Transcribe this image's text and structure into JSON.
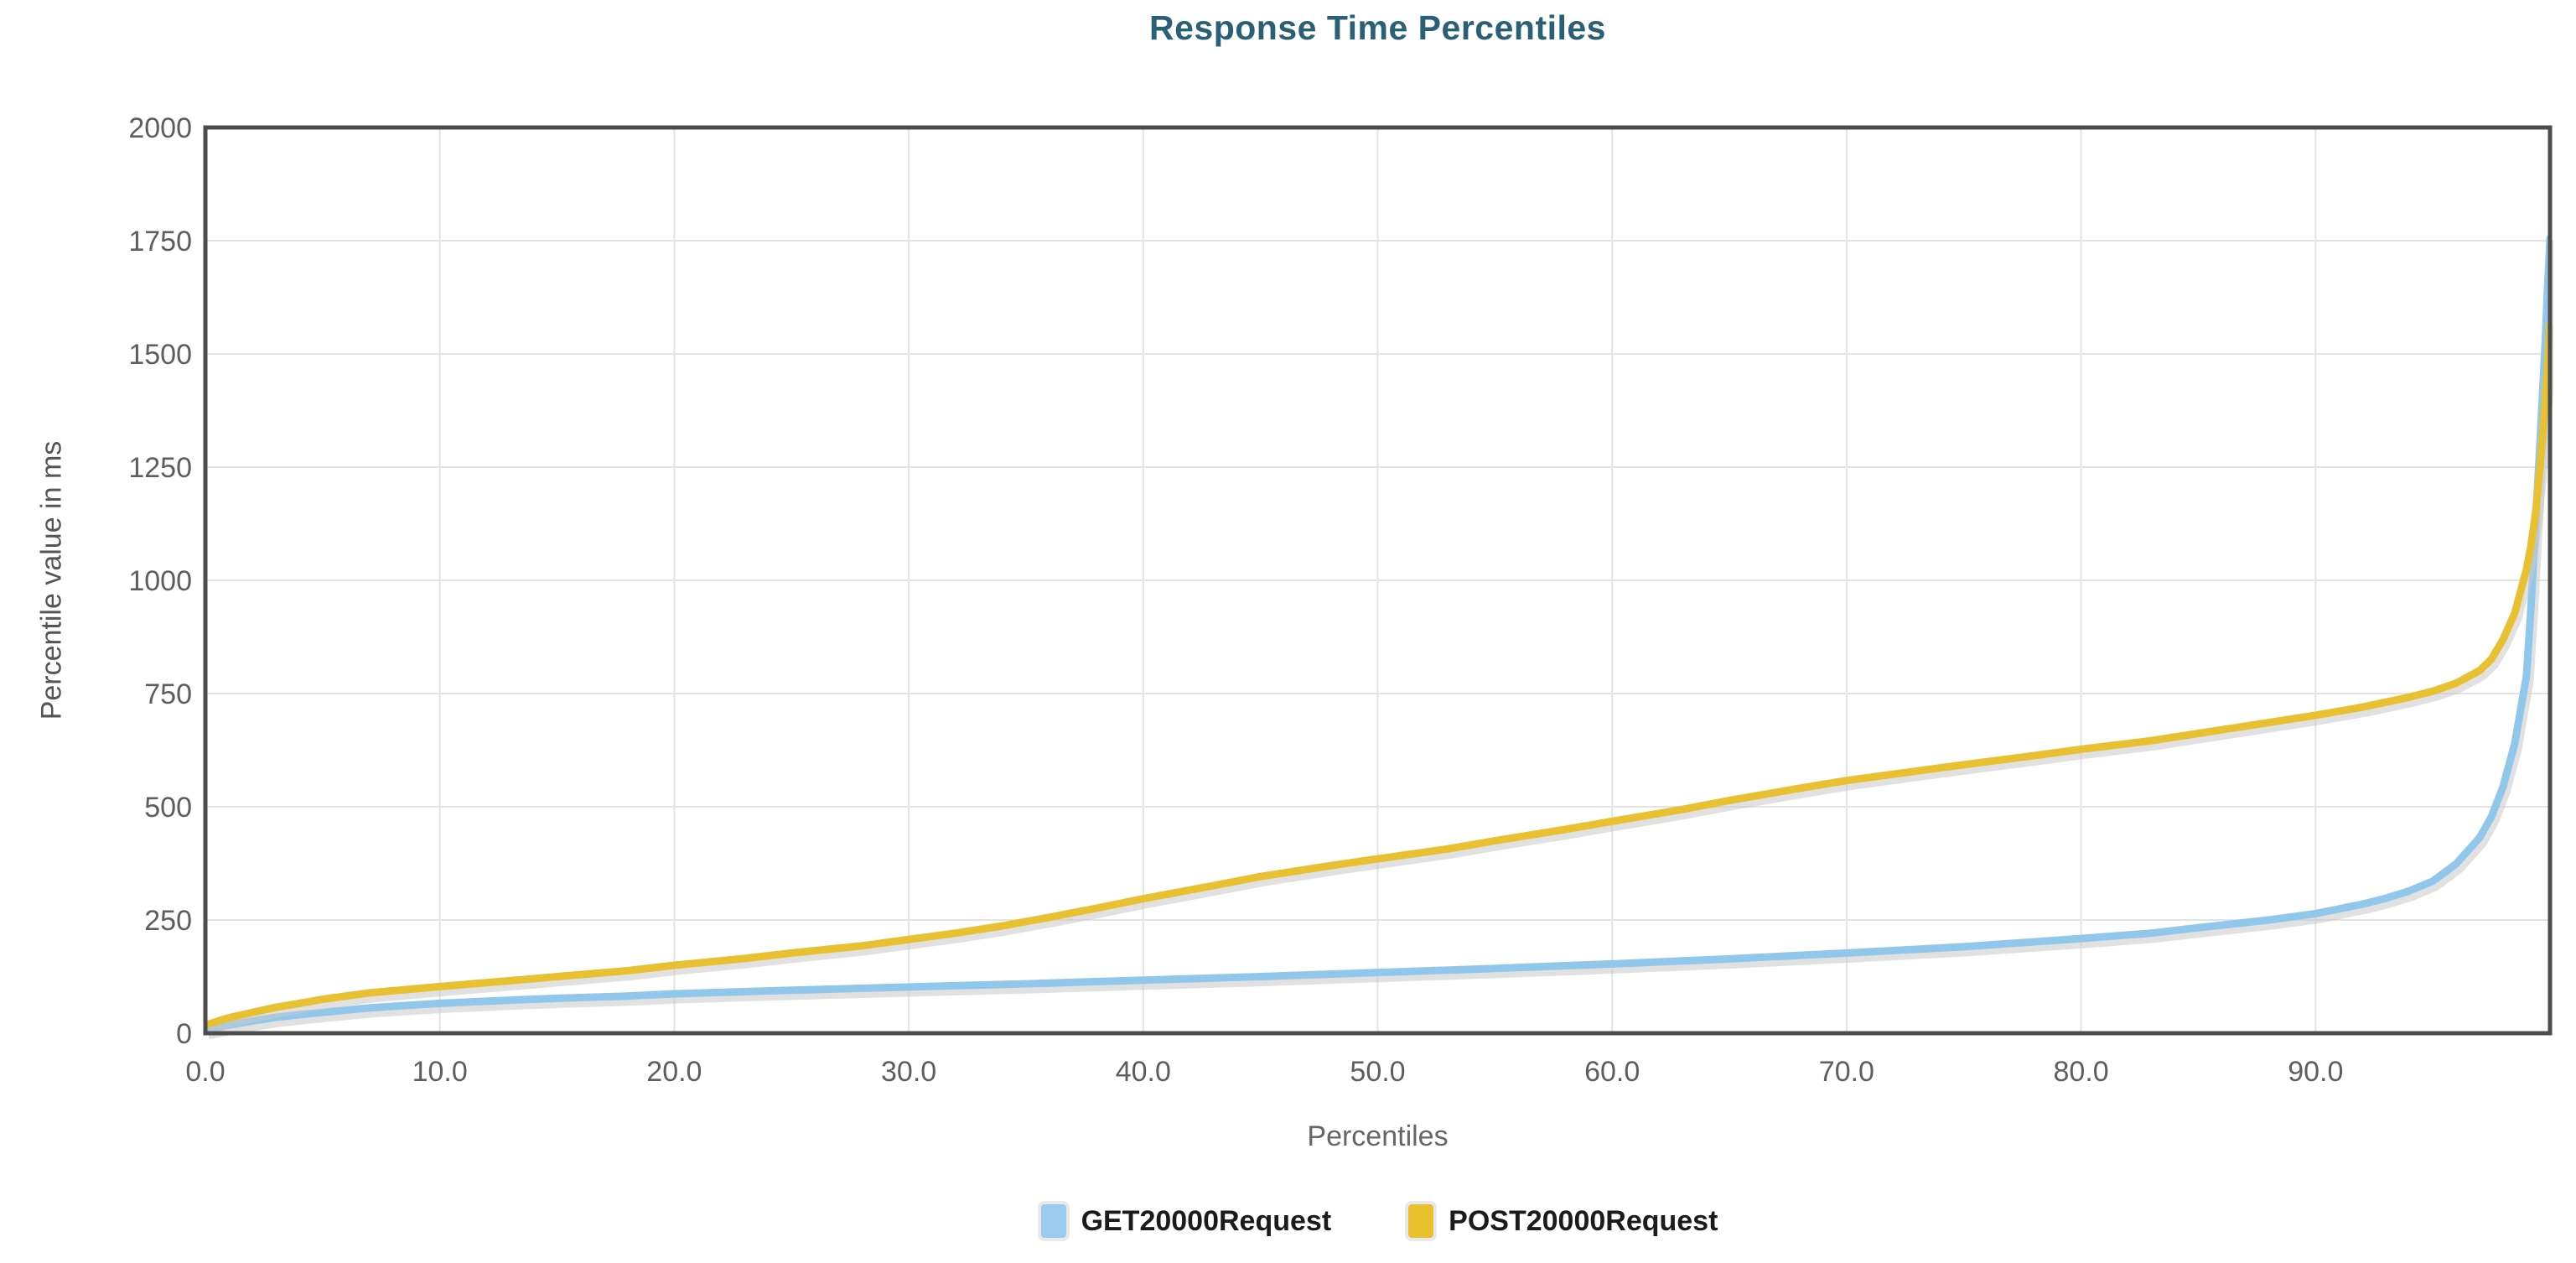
{
  "chart": {
    "title": "Response Time Percentiles",
    "x_axis_label": "Percentiles",
    "y_axis_label": "Percentile value in ms"
  },
  "colors": {
    "title_text": "#2a6076",
    "tick_text": "#5e5e5e",
    "axis_title_text": "#666666",
    "grid_line": "#e3e3e3",
    "plot_border": "#4c4c4c",
    "line_shadow": "#c9c9c9",
    "get_series": "#92c7ec",
    "post_series": "#e8c133",
    "legend_swatch_get": "#9ccbf0",
    "legend_swatch_post": "#e9c12f"
  },
  "chart_data": {
    "type": "line",
    "title": "Response Time Percentiles",
    "xlabel": "Percentiles",
    "ylabel": "Percentile value in ms",
    "xlim": [
      0,
      100
    ],
    "ylim": [
      0,
      2000
    ],
    "grid": true,
    "legend_position": "bottom",
    "x_ticks": [
      0,
      10,
      20,
      30,
      40,
      50,
      60,
      70,
      80,
      90
    ],
    "x_tick_labels": [
      "0.0",
      "10.0",
      "20.0",
      "30.0",
      "40.0",
      "50.0",
      "60.0",
      "70.0",
      "80.0",
      "90.0"
    ],
    "y_ticks": [
      0,
      250,
      500,
      750,
      1000,
      1250,
      1500,
      1750,
      2000
    ],
    "y_tick_labels": [
      "0",
      "250",
      "500",
      "750",
      "1000",
      "1250",
      "1500",
      "1750",
      "2000"
    ],
    "series": [
      {
        "name": "GET20000Request",
        "color": "#92c7ec",
        "swatch_color": "#9ccbf0",
        "points": [
          [
            0,
            8
          ],
          [
            1,
            18
          ],
          [
            2,
            27
          ],
          [
            3,
            35
          ],
          [
            4,
            41
          ],
          [
            5,
            46
          ],
          [
            7,
            56
          ],
          [
            10,
            66
          ],
          [
            13,
            73
          ],
          [
            15,
            77
          ],
          [
            18,
            82
          ],
          [
            20,
            87
          ],
          [
            25,
            95
          ],
          [
            30,
            102
          ],
          [
            35,
            109
          ],
          [
            40,
            117
          ],
          [
            45,
            125
          ],
          [
            50,
            134
          ],
          [
            55,
            143
          ],
          [
            60,
            153
          ],
          [
            65,
            164
          ],
          [
            70,
            177
          ],
          [
            75,
            191
          ],
          [
            80,
            209
          ],
          [
            83,
            221
          ],
          [
            85,
            233
          ],
          [
            88,
            250
          ],
          [
            90,
            264
          ],
          [
            92,
            285
          ],
          [
            93,
            298
          ],
          [
            94,
            314
          ],
          [
            95,
            336
          ],
          [
            96,
            374
          ],
          [
            97,
            432
          ],
          [
            97.5,
            478
          ],
          [
            98,
            545
          ],
          [
            98.5,
            640
          ],
          [
            99,
            790
          ],
          [
            99.2,
            950
          ],
          [
            99.4,
            1140
          ],
          [
            99.6,
            1330
          ],
          [
            99.8,
            1530
          ],
          [
            99.9,
            1650
          ],
          [
            100,
            1755
          ]
        ]
      },
      {
        "name": "POST20000Request",
        "color": "#e8c133",
        "swatch_color": "#e9c12f",
        "points": [
          [
            0,
            18
          ],
          [
            1,
            34
          ],
          [
            2,
            46
          ],
          [
            3,
            57
          ],
          [
            4,
            66
          ],
          [
            5,
            75
          ],
          [
            7,
            89
          ],
          [
            10,
            103
          ],
          [
            13,
            116
          ],
          [
            15,
            125
          ],
          [
            18,
            138
          ],
          [
            20,
            150
          ],
          [
            23,
            165
          ],
          [
            25,
            177
          ],
          [
            28,
            193
          ],
          [
            30,
            207
          ],
          [
            32,
            221
          ],
          [
            34,
            237
          ],
          [
            36,
            256
          ],
          [
            38,
            276
          ],
          [
            40,
            297
          ],
          [
            43,
            326
          ],
          [
            45,
            346
          ],
          [
            48,
            370
          ],
          [
            50,
            385
          ],
          [
            53,
            407
          ],
          [
            55,
            425
          ],
          [
            58,
            450
          ],
          [
            60,
            468
          ],
          [
            63,
            494
          ],
          [
            65,
            514
          ],
          [
            68,
            541
          ],
          [
            70,
            558
          ],
          [
            73,
            579
          ],
          [
            75,
            593
          ],
          [
            78,
            613
          ],
          [
            80,
            627
          ],
          [
            83,
            646
          ],
          [
            85,
            662
          ],
          [
            88,
            686
          ],
          [
            90,
            702
          ],
          [
            92,
            720
          ],
          [
            94,
            742
          ],
          [
            95,
            755
          ],
          [
            96,
            773
          ],
          [
            97,
            801
          ],
          [
            97.5,
            826
          ],
          [
            98,
            870
          ],
          [
            98.5,
            928
          ],
          [
            99,
            1025
          ],
          [
            99.2,
            1080
          ],
          [
            99.4,
            1155
          ],
          [
            99.6,
            1265
          ],
          [
            99.8,
            1400
          ],
          [
            99.9,
            1480
          ],
          [
            100,
            1565
          ]
        ]
      }
    ]
  }
}
